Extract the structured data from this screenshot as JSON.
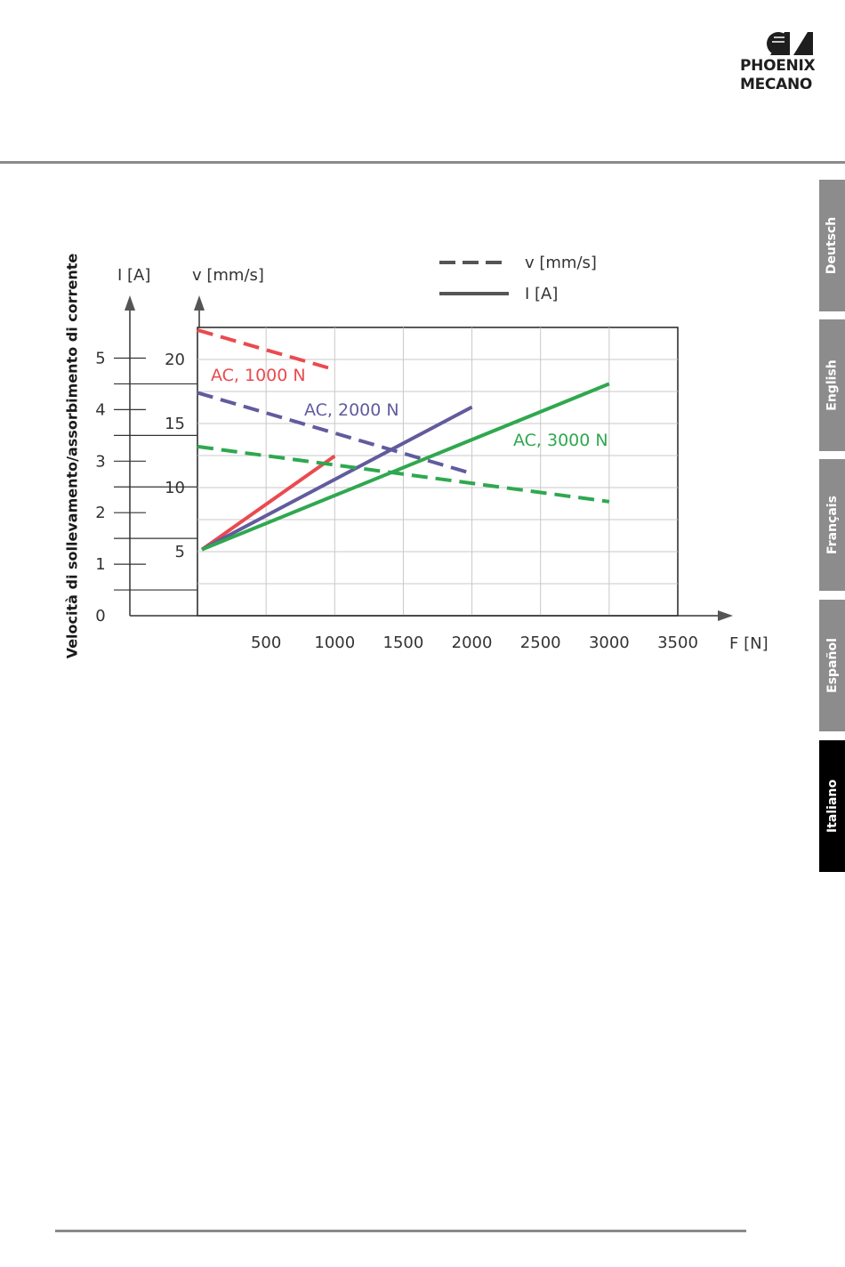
{
  "brand": {
    "line1": "PHOENIX",
    "line2": "MECANO"
  },
  "tabs": [
    {
      "label": "Deutsch",
      "active": false
    },
    {
      "label": "English",
      "active": false
    },
    {
      "label": "Français",
      "active": false
    },
    {
      "label": "Español",
      "active": false
    },
    {
      "label": "Italiano",
      "active": true
    }
  ],
  "chart_data": {
    "type": "line",
    "ylabel": "Velocità di sollevamento/assorbimento di corrente",
    "xlabel": "F [N]",
    "y_current_label": "I [A]",
    "y_speed_label": "v [mm/s]",
    "x_ticks": [
      500,
      1000,
      1500,
      2000,
      2500,
      3000,
      3500
    ],
    "current_ticks": [
      0,
      1,
      2,
      3,
      4,
      5
    ],
    "speed_ticks": [
      5,
      10,
      15,
      20
    ],
    "xlim": [
      0,
      3500
    ],
    "current_lim": [
      0,
      5.5
    ],
    "legend": {
      "dashed": "v [mm/s]",
      "solid": "I [A]",
      "position": "top"
    },
    "grid": true,
    "series": [
      {
        "name": "AC, 1000 N",
        "color": "#ea4a4f",
        "speed": {
          "x": [
            0,
            1000
          ],
          "y": [
            22.3,
            19.2
          ]
        },
        "current": {
          "x": [
            0,
            1000
          ],
          "y": [
            1.25,
            3.1
          ]
        }
      },
      {
        "name": "AC, 2000 N",
        "color": "#615b9e",
        "speed": {
          "x": [
            0,
            2000
          ],
          "y": [
            17.4,
            11.1
          ]
        },
        "current": {
          "x": [
            0,
            2000
          ],
          "y": [
            1.25,
            4.05
          ]
        }
      },
      {
        "name": "AC, 3000 N",
        "color": "#2fa84f",
        "speed": {
          "x": [
            0,
            3000
          ],
          "y": [
            13.2,
            8.9
          ]
        },
        "current": {
          "x": [
            0,
            3000
          ],
          "y": [
            1.25,
            4.5
          ]
        }
      }
    ]
  }
}
